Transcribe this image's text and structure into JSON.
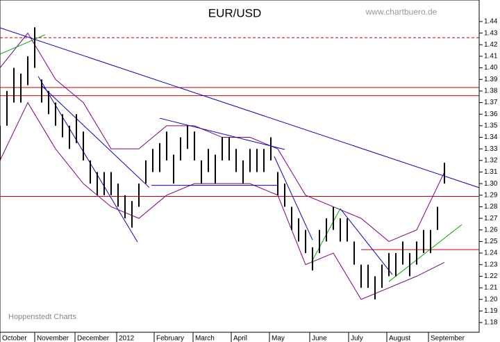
{
  "chart_data": {
    "type": "ohlc",
    "title": "EUR/USD",
    "source": "www.chartbuero.de",
    "credit": "Hoppenstedt Charts",
    "x": [
      0,
      1,
      2,
      3,
      4,
      5,
      6,
      7,
      8,
      9,
      10,
      11,
      12,
      13,
      14,
      15,
      16,
      17,
      18,
      19,
      20,
      21,
      22,
      23,
      24,
      25,
      26,
      27,
      28,
      29,
      30,
      31,
      32,
      33,
      34,
      35,
      36,
      37,
      38,
      39,
      40,
      41,
      42,
      43,
      44,
      45,
      46,
      47,
      48,
      49,
      50,
      51,
      52,
      53,
      54,
      55,
      56,
      57,
      58,
      59,
      60,
      61,
      62,
      63,
      64
    ],
    "series": [
      {
        "name": "high",
        "color": "#000000",
        "values": [
          1.35,
          1.38,
          1.4,
          1.395,
          1.41,
          1.435,
          1.39,
          1.38,
          1.37,
          1.36,
          1.35,
          1.36,
          1.345,
          1.32,
          1.31,
          1.31,
          1.31,
          1.3,
          1.29,
          1.285,
          1.3,
          1.32,
          1.33,
          1.335,
          1.345,
          1.325,
          1.34,
          1.35,
          1.345,
          1.32,
          1.33,
          1.325,
          1.34,
          1.34,
          1.33,
          1.32,
          1.33,
          1.33,
          1.33,
          1.34,
          1.31,
          1.3,
          1.28,
          1.27,
          1.26,
          1.245,
          1.26,
          1.27,
          1.28,
          1.27,
          1.27,
          1.25,
          1.23,
          1.23,
          1.22,
          1.23,
          1.24,
          1.24,
          1.25,
          1.24,
          1.25,
          1.26,
          1.26,
          1.28,
          1.318
        ]
      },
      {
        "name": "low",
        "color": "#000000",
        "values": [
          1.32,
          1.35,
          1.37,
          1.37,
          1.385,
          1.4,
          1.37,
          1.36,
          1.35,
          1.34,
          1.33,
          1.335,
          1.32,
          1.3,
          1.29,
          1.29,
          1.29,
          1.28,
          1.27,
          1.262,
          1.28,
          1.3,
          1.31,
          1.31,
          1.32,
          1.3,
          1.32,
          1.33,
          1.32,
          1.3,
          1.31,
          1.3,
          1.32,
          1.32,
          1.31,
          1.3,
          1.31,
          1.31,
          1.31,
          1.32,
          1.29,
          1.28,
          1.26,
          1.25,
          1.24,
          1.225,
          1.24,
          1.25,
          1.26,
          1.25,
          1.25,
          1.23,
          1.21,
          1.21,
          1.2,
          1.21,
          1.22,
          1.22,
          1.23,
          1.22,
          1.23,
          1.24,
          1.24,
          1.26,
          1.3
        ]
      }
    ],
    "band_x": [
      0,
      4,
      8,
      12,
      16,
      20,
      24,
      28,
      32,
      36,
      40,
      44,
      48,
      52,
      56,
      60,
      64
    ],
    "bands": [
      {
        "name": "upper",
        "color": "#800080",
        "values": [
          1.4,
          1.43,
          1.39,
          1.37,
          1.33,
          1.33,
          1.35,
          1.35,
          1.34,
          1.34,
          1.33,
          1.29,
          1.28,
          1.27,
          1.25,
          1.26,
          1.31
        ]
      },
      {
        "name": "lower",
        "color": "#800080",
        "values": [
          1.32,
          1.37,
          1.33,
          1.3,
          1.28,
          1.27,
          1.29,
          1.3,
          1.3,
          1.3,
          1.29,
          1.23,
          1.24,
          1.2,
          1.21,
          1.22,
          1.232
        ]
      }
    ],
    "hlines": [
      {
        "value": 1.426,
        "color": "#cc0000",
        "dashed": true,
        "from": 0
      },
      {
        "value": 1.383,
        "color": "#cc0000",
        "dashed": false,
        "from": 0
      },
      {
        "value": 1.376,
        "color": "#cc0000",
        "dashed": false,
        "from": 0
      },
      {
        "value": 1.289,
        "color": "#cc0000",
        "dashed": false,
        "from": 0
      },
      {
        "value": 1.243,
        "color": "#cc0000",
        "dashed": false,
        "from": 52
      }
    ],
    "trendlines": [
      {
        "x": [
          0,
          69
        ],
        "y": [
          1.4346,
          1.2965
        ],
        "color": "#0000cc"
      },
      {
        "x": [
          21.8,
          40
        ],
        "y": [
          1.2985,
          1.2985
        ],
        "color": "#0000cc"
      },
      {
        "x": [
          5.5,
          19.8
        ],
        "y": [
          1.3926,
          1.2496
        ],
        "color": "#0000cc"
      },
      {
        "x": [
          6,
          21.5
        ],
        "y": [
          1.3846,
          1.2966
        ],
        "color": "#0000cc"
      },
      {
        "x": [
          23,
          41
        ],
        "y": [
          1.3565,
          1.3295
        ],
        "color": "#0000cc"
      },
      {
        "x": [
          39.5,
          45
        ],
        "y": [
          1.3235,
          1.2514
        ],
        "color": "#0000cc"
      },
      {
        "x": [
          49,
          56.5
        ],
        "y": [
          1.2784,
          1.2214
        ],
        "color": "#0000cc"
      },
      {
        "x": [
          0,
          6.5
        ],
        "y": [
          1.4118,
          1.4286
        ],
        "color": "#00aa00"
      },
      {
        "x": [
          44.8,
          49
        ],
        "y": [
          1.2316,
          1.2784
        ],
        "color": "#00aa00"
      },
      {
        "x": [
          56,
          66.5
        ],
        "y": [
          1.2154,
          1.2646
        ],
        "color": "#00aa00"
      }
    ],
    "xlim": [
      0,
      69
    ],
    "ylim": [
      1.1716,
      1.4586
    ],
    "xticks": [
      {
        "value": 0,
        "label": "October"
      },
      {
        "value": 5,
        "label": "November"
      },
      {
        "value": 10.8,
        "label": "December"
      },
      {
        "value": 16.8,
        "label": "2012"
      },
      {
        "value": 22.2,
        "label": "February"
      },
      {
        "value": 27.8,
        "label": "March"
      },
      {
        "value": 33.3,
        "label": "April"
      },
      {
        "value": 38.8,
        "label": "May"
      },
      {
        "value": 44.6,
        "label": "June"
      },
      {
        "value": 50.2,
        "label": "July"
      },
      {
        "value": 55.7,
        "label": "August"
      },
      {
        "value": 61.7,
        "label": "September"
      }
    ],
    "yticks": [
      1.18,
      1.19,
      {
        "value": 1.2,
        "label": "1.20"
      },
      1.21,
      1.22,
      1.23,
      1.24,
      1.25,
      1.26,
      1.27,
      1.28,
      1.29,
      {
        "value": 1.3,
        "label": "1.30"
      },
      1.31,
      1.32,
      1.33,
      1.34,
      1.35,
      1.36,
      1.37,
      1.38,
      1.39,
      {
        "value": 1.4,
        "label": "1.40"
      },
      1.41,
      1.42,
      1.43,
      1.44
    ]
  }
}
